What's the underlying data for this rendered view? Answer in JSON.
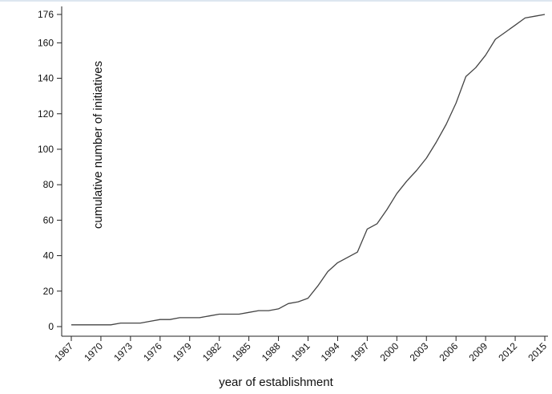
{
  "chart_data": {
    "type": "line",
    "title": "",
    "xlabel": "year of establishment",
    "ylabel": "cumulative number of initiatives",
    "xlim": [
      1967,
      2015
    ],
    "ylim": [
      0,
      176
    ],
    "xticks": [
      1967,
      1970,
      1973,
      1976,
      1979,
      1982,
      1985,
      1988,
      1991,
      1994,
      1997,
      2000,
      2003,
      2006,
      2009,
      2012,
      2015
    ],
    "yticks": [
      0,
      20,
      40,
      60,
      80,
      100,
      120,
      140,
      160,
      176
    ],
    "grid": false,
    "line_color": "#444444",
    "series": [
      {
        "x": [
          1967,
          1968,
          1969,
          1970,
          1971,
          1972,
          1973,
          1974,
          1975,
          1976,
          1977,
          1978,
          1979,
          1980,
          1981,
          1982,
          1983,
          1984,
          1985,
          1986,
          1987,
          1988,
          1989,
          1990,
          1991,
          1992,
          1993,
          1994,
          1995,
          1996,
          1997,
          1998,
          1999,
          2000,
          2001,
          2002,
          2003,
          2004,
          2005,
          2006,
          2007,
          2008,
          2009,
          2010,
          2011,
          2012,
          2013,
          2014,
          2015
        ],
        "values": [
          1,
          1,
          1,
          1,
          1,
          2,
          2,
          2,
          3,
          4,
          4,
          5,
          5,
          5,
          6,
          7,
          7,
          7,
          8,
          9,
          9,
          10,
          13,
          14,
          16,
          23,
          31,
          36,
          39,
          42,
          55,
          58,
          66,
          75,
          82,
          88,
          95,
          104,
          114,
          126,
          141,
          146,
          153,
          162,
          166,
          170,
          174,
          175,
          176
        ]
      }
    ]
  }
}
